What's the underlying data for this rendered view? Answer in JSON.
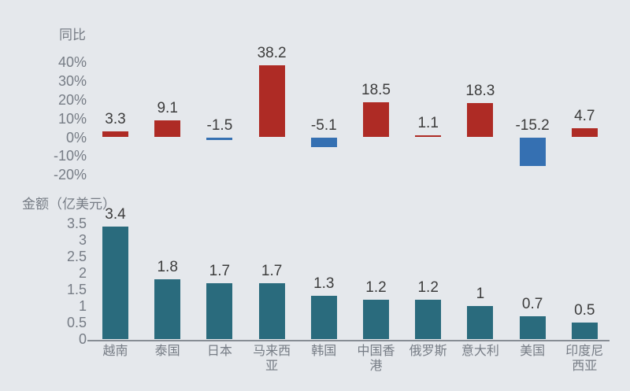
{
  "page": {
    "background_color": "#E5E8EC",
    "text_gray": "#767c85",
    "text_dark": "#3c3c3c",
    "axis_line_color": "#878d94"
  },
  "chart_data": [
    {
      "type": "bar",
      "title": "同比",
      "categories": [
        "越南",
        "泰国",
        "日本",
        "马来西亚",
        "韩国",
        "中国香港",
        "俄罗斯",
        "意大利",
        "美国",
        "印度尼西亚"
      ],
      "values": [
        3.3,
        9.1,
        -1.5,
        38.2,
        -5.1,
        18.5,
        1.1,
        18.3,
        -15.2,
        4.7
      ],
      "value_labels": [
        "3.3",
        "9.1",
        "-1.5",
        "38.2",
        "-5.1",
        "18.5",
        "1.1",
        "18.3",
        "-15.2",
        "4.7"
      ],
      "unit": "%",
      "ylim": [
        -20,
        40
      ],
      "yticks": [
        40,
        30,
        20,
        10,
        0,
        -10,
        -20
      ],
      "ytick_labels": [
        "40%",
        "30%",
        "20%",
        "10%",
        "0%",
        "-10%",
        "-20%"
      ],
      "grid": false,
      "legend": "none",
      "x_axis_line": false,
      "show_x_labels": false,
      "positive_color": "#AE2B25",
      "negative_color": "#3570B2"
    },
    {
      "type": "bar",
      "title": "金额（亿美元）",
      "categories": [
        "越南",
        "泰国",
        "日本",
        "马来西亚",
        "韩国",
        "中国香港",
        "俄罗斯",
        "意大利",
        "美国",
        "印度尼西亚"
      ],
      "values": [
        3.4,
        1.8,
        1.7,
        1.7,
        1.3,
        1.2,
        1.2,
        1,
        0.7,
        0.5
      ],
      "value_labels": [
        "3.4",
        "1.8",
        "1.7",
        "1.7",
        "1.3",
        "1.2",
        "1.2",
        "1",
        "0.7",
        "0.5"
      ],
      "unit": "亿美元",
      "ylim": [
        0,
        3.5
      ],
      "yticks": [
        3.5,
        3,
        2.5,
        2,
        1.5,
        1,
        0.5,
        0
      ],
      "ytick_labels": [
        "3.5",
        "3",
        "2.5",
        "2",
        "1.5",
        "1",
        "0.5",
        "0"
      ],
      "grid": false,
      "legend": "none",
      "x_axis_line": true,
      "show_x_labels": true,
      "bar_color": "#2A6B7D"
    }
  ]
}
